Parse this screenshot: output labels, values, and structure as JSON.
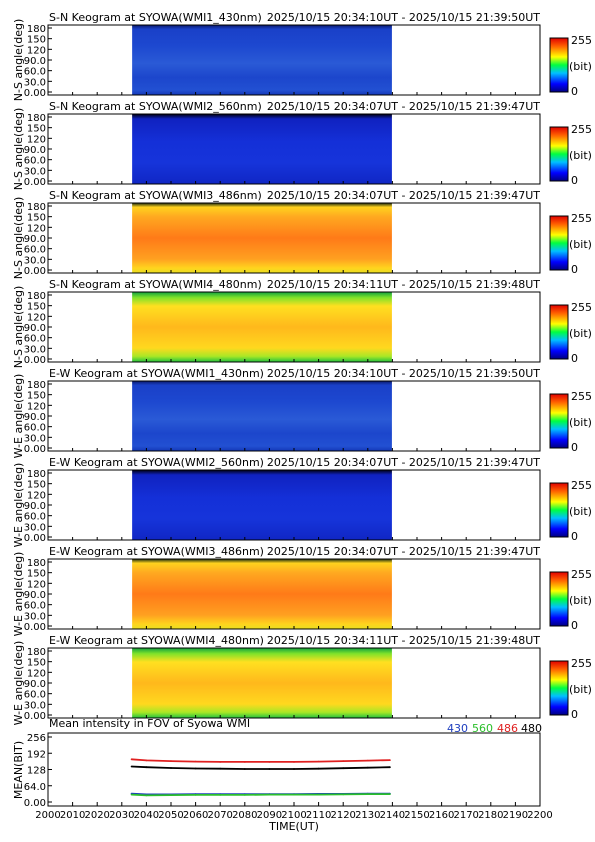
{
  "keogram_panels": [
    {
      "title": "S-N Keogram at SYOWA(WMI1_430nm)",
      "time_range": "2025/10/15 20:34:10UT - 2025/10/15 21:39:50UT",
      "ylabel": "N-S angle(deg)",
      "profile": "blue_low"
    },
    {
      "title": "S-N Keogram at SYOWA(WMI2_560nm)",
      "time_range": "2025/10/15 20:34:07UT - 2025/10/15 21:39:47UT",
      "ylabel": "N-S angle(deg)",
      "profile": "blue_dark"
    },
    {
      "title": "S-N Keogram at SYOWA(WMI3_486nm)",
      "time_range": "2025/10/15 20:34:07UT - 2025/10/15 21:39:47UT",
      "ylabel": "N-S angle(deg)",
      "profile": "orange_high"
    },
    {
      "title": "S-N Keogram at SYOWA(WMI4_480nm)",
      "time_range": "2025/10/15 20:34:11UT - 2025/10/15 21:39:48UT",
      "ylabel": "N-S angle(deg)",
      "profile": "yellow_mid"
    },
    {
      "title": "E-W Keogram at SYOWA(WMI1_430nm)",
      "time_range": "2025/10/15 20:34:10UT - 2025/10/15 21:39:50UT",
      "ylabel": "W-E angle(deg)",
      "profile": "blue_low"
    },
    {
      "title": "E-W Keogram at SYOWA(WMI2_560nm)",
      "time_range": "2025/10/15 20:34:07UT - 2025/10/15 21:39:47UT",
      "ylabel": "W-E angle(deg)",
      "profile": "blue_dark"
    },
    {
      "title": "E-W Keogram at SYOWA(WMI3_486nm)",
      "time_range": "2025/10/15 20:34:07UT - 2025/10/15 21:39:47UT",
      "ylabel": "W-E angle(deg)",
      "profile": "orange_high"
    },
    {
      "title": "E-W Keogram at SYOWA(WMI4_480nm)",
      "time_range": "2025/10/15 20:34:11UT - 2025/10/15 21:39:48UT",
      "ylabel": "W-E angle(deg)",
      "profile": "yellow_mid"
    }
  ],
  "keogram_yticks": [
    "180",
    "150",
    "120",
    "90.0",
    "60.0",
    "30.0",
    "0.00"
  ],
  "colorbar": {
    "max_label": "255",
    "unit_label": "(bit)",
    "min_label": "0"
  },
  "mean_panel": {
    "title": "Mean intensity in FOV of Syowa WMI",
    "ylabel": "MEAN(BIT)",
    "legend": [
      {
        "label": "430",
        "color": "#1f3fbf"
      },
      {
        "label": "560",
        "color": "#2bbf2b"
      },
      {
        "label": "486",
        "color": "#e02020"
      },
      {
        "label": "480",
        "color": "#000000"
      }
    ]
  },
  "colors": {
    "frame": "#000000",
    "background": "#ffffff"
  },
  "chart_data": {
    "type": "line",
    "title": "Mean intensity in FOV of Syowa WMI",
    "xlabel": "TIME(UT)",
    "ylabel": "MEAN(BIT)",
    "xlim": [
      2000,
      2200
    ],
    "ylim": [
      0,
      256
    ],
    "x_ticks": [
      "2000",
      "2010",
      "2020",
      "2030",
      "2040",
      "2050",
      "2060",
      "2070",
      "2080",
      "2090",
      "2100",
      "2110",
      "2120",
      "2130",
      "2140",
      "2150",
      "2160",
      "2170",
      "2180",
      "2190",
      "2200"
    ],
    "y_ticks": [
      "256",
      "192",
      "128",
      "64.0",
      "0.00"
    ],
    "series": [
      {
        "name": "430",
        "color": "#1f3fbf",
        "x": [
          2034,
          2040,
          2050,
          2060,
          2070,
          2080,
          2090,
          2100,
          2110,
          2120,
          2130,
          2139
        ],
        "y": [
          33,
          30,
          30,
          31,
          31,
          31,
          31,
          31,
          32,
          32,
          33,
          33
        ]
      },
      {
        "name": "560",
        "color": "#2bbf2b",
        "x": [
          2034,
          2040,
          2050,
          2060,
          2070,
          2080,
          2090,
          2100,
          2110,
          2120,
          2130,
          2139
        ],
        "y": [
          29,
          26,
          27,
          28,
          28,
          28,
          29,
          29,
          29,
          30,
          31,
          31
        ]
      },
      {
        "name": "486",
        "color": "#e02020",
        "x": [
          2034,
          2040,
          2050,
          2060,
          2070,
          2080,
          2090,
          2100,
          2110,
          2120,
          2130,
          2139
        ],
        "y": [
          168,
          164,
          161,
          159,
          158,
          158,
          158,
          158,
          159,
          161,
          163,
          165
        ]
      },
      {
        "name": "480",
        "color": "#000000",
        "x": [
          2034,
          2040,
          2050,
          2060,
          2070,
          2080,
          2090,
          2100,
          2110,
          2120,
          2130,
          2139
        ],
        "y": [
          140,
          137,
          134,
          132,
          131,
          130,
          130,
          130,
          131,
          133,
          135,
          137
        ]
      }
    ]
  }
}
